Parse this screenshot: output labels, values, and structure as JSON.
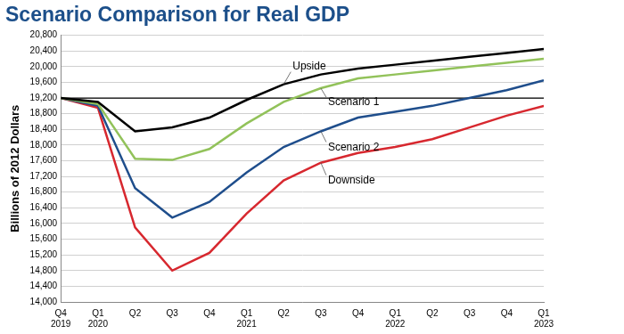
{
  "chart_data": {
    "type": "line",
    "title": "Scenario Comparison for Real GDP",
    "y_label": "Billions of 2012 Dollars",
    "categories": [
      "Q4 2019",
      "Q1 2020",
      "Q2",
      "Q3",
      "Q4",
      "Q1 2021",
      "Q2",
      "Q3",
      "Q4",
      "Q1 2022",
      "Q2",
      "Q3",
      "Q4",
      "Q1 2023"
    ],
    "series": [
      {
        "name": "Upside",
        "color": "#000000",
        "values": [
          19200,
          19100,
          18350,
          18450,
          18700,
          19150,
          19550,
          19800,
          19950,
          20050,
          20150,
          20250,
          20350,
          20450
        ]
      },
      {
        "name": "Scenario 1",
        "color": "#92c25a",
        "values": [
          19200,
          19050,
          17650,
          17620,
          17900,
          18550,
          19100,
          19450,
          19700,
          19800,
          19900,
          20000,
          20100,
          20200
        ]
      },
      {
        "name": "Scenario 2",
        "color": "#1f4e8c",
        "values": [
          19200,
          19000,
          16900,
          16150,
          16550,
          17300,
          17950,
          18350,
          18700,
          18850,
          19000,
          19200,
          19400,
          19650
        ]
      },
      {
        "name": "Downside",
        "color": "#d7282f",
        "values": [
          19200,
          18950,
          15900,
          14800,
          15250,
          16250,
          17100,
          17550,
          17800,
          17950,
          18150,
          18450,
          18750,
          19000
        ]
      }
    ],
    "reference_line": 19200,
    "ylim": [
      14000,
      20800
    ],
    "yticks": [
      {
        "value": 14000,
        "label": "14,000"
      },
      {
        "value": 14400,
        "label": "14,400"
      },
      {
        "value": 14800,
        "label": "14,800"
      },
      {
        "value": 15200,
        "label": "15,200"
      },
      {
        "value": 15600,
        "label": "15,600"
      },
      {
        "value": 16000,
        "label": "16,000"
      },
      {
        "value": 16400,
        "label": "16,400"
      },
      {
        "value": 16800,
        "label": "16,800"
      },
      {
        "value": 17200,
        "label": "17,200"
      },
      {
        "value": 17600,
        "label": "17,600"
      },
      {
        "value": 18000,
        "label": "18,000"
      },
      {
        "value": 18400,
        "label": "18,400"
      },
      {
        "value": 18800,
        "label": "18,800"
      },
      {
        "value": 19200,
        "label": "19,200"
      },
      {
        "value": 19600,
        "label": "19,600"
      },
      {
        "value": 20000,
        "label": "20,000"
      },
      {
        "value": 20400,
        "label": "20,400"
      },
      {
        "value": 20800,
        "label": "20,800"
      }
    ],
    "grid": true,
    "legend": false
  }
}
